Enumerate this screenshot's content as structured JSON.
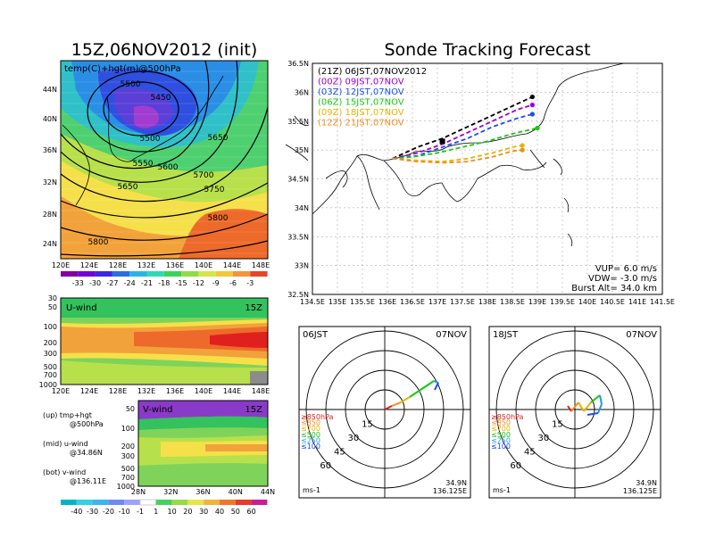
{
  "map_title": "15Z,06NOV2012 (init)",
  "map_subtitle": "temp(C)+hgt(m)@500hPa",
  "map_lat_labels": [
    "44N",
    "40N",
    "36N",
    "32N",
    "28N",
    "24N"
  ],
  "map_lon_labels": [
    "120E",
    "124E",
    "128E",
    "132E",
    "136E",
    "140E",
    "144E",
    "148E"
  ],
  "contour_labels": [
    "5500",
    "5450",
    "5500",
    "5550",
    "5600",
    "5650",
    "5650",
    "5700",
    "5750",
    "5800",
    "5800"
  ],
  "temp_colorbar": [
    "-33",
    "-30",
    "-27",
    "-24",
    "-21",
    "-18",
    "-15",
    "-12",
    "-9",
    "-6",
    "-3"
  ],
  "uwind": {
    "label": "U-wind",
    "time": "15Z",
    "p_labels": [
      "30",
      "50",
      "100",
      "200",
      "300",
      "500",
      "700",
      "1000"
    ]
  },
  "vwind": {
    "label": "V-wind",
    "time": "15Z",
    "p_labels": [
      "50",
      "100",
      "200",
      "300",
      "500",
      "700",
      "1000"
    ],
    "lat_labels": [
      "28N",
      "32N",
      "36N",
      "40N",
      "44N"
    ]
  },
  "legend_notes": [
    {
      "a": "(up) tmp+hgt",
      "b": "@500hPa"
    },
    {
      "a": "(mid) u-wind",
      "b": "@34.86N"
    },
    {
      "a": "(bot) v-wind",
      "b": "@136.11E"
    }
  ],
  "wind_colorbar": [
    "-40",
    "-30",
    "-20",
    "-10",
    "-1",
    "1",
    "10",
    "20",
    "30",
    "40",
    "50",
    "60"
  ],
  "colors": {
    "c00": "#000000",
    "c03": "#9a00d6",
    "c06": "#1e4fe6",
    "c09": "#19c810",
    "c12": "#e6b400",
    "c15": "#f08c1e",
    "c18": "#ff3c00"
  },
  "chart_data": {
    "type": "line",
    "title": "Sonde Tracking Forecast",
    "xlim": [
      134.5,
      141.5
    ],
    "ylim": [
      32.5,
      36.5
    ],
    "x_ticks": [
      "134.5E",
      "135E",
      "135.5E",
      "136E",
      "136.5E",
      "137E",
      "137.5E",
      "138E",
      "138.5E",
      "139E",
      "139.5E",
      "140E",
      "140.5E",
      "141E",
      "141.5E"
    ],
    "y_ticks": [
      "32.5N",
      "33N",
      "33.5N",
      "34N",
      "34.5N",
      "35N",
      "35.5N",
      "36N",
      "36.5N"
    ],
    "series": [
      {
        "name": "(21Z)  06JST,07NOV2012",
        "color": "#000000",
        "x": [
          136.1,
          136.6,
          137.1,
          137.6,
          138.1,
          138.6,
          138.9
        ],
        "y": [
          34.85,
          35.05,
          35.2,
          35.4,
          35.6,
          35.8,
          35.92
        ]
      },
      {
        "name": "(00Z)  09JST,07NOV",
        "color": "#9a00d6",
        "x": [
          136.1,
          136.6,
          137.1,
          137.6,
          138.1,
          138.6,
          138.9
        ],
        "y": [
          34.85,
          34.95,
          35.1,
          35.3,
          35.5,
          35.7,
          35.78
        ]
      },
      {
        "name": "(03Z)  12JST,07NOV",
        "color": "#1e4fe6",
        "x": [
          136.1,
          136.6,
          137.1,
          137.6,
          138.1,
          138.6,
          138.9
        ],
        "y": [
          34.85,
          34.9,
          35.05,
          35.2,
          35.4,
          35.55,
          35.62
        ]
      },
      {
        "name": "(06Z)  15JST,07NOV",
        "color": "#19c810",
        "x": [
          136.1,
          136.5,
          137.0,
          137.5,
          138.0,
          138.5,
          139.0
        ],
        "y": [
          34.85,
          34.88,
          34.95,
          35.05,
          35.15,
          35.28,
          35.38
        ]
      },
      {
        "name": "(09Z)  18JST,07NOV",
        "color": "#e6b400",
        "x": [
          136.1,
          136.6,
          137.1,
          137.6,
          138.1,
          138.5,
          138.7
        ],
        "y": [
          34.85,
          34.82,
          34.8,
          34.85,
          34.95,
          35.05,
          35.08
        ]
      },
      {
        "name": "(12Z)  21JST,07NOV",
        "color": "#f08c1e",
        "x": [
          136.1,
          136.6,
          137.1,
          137.6,
          138.1,
          138.5,
          138.7
        ],
        "y": [
          34.85,
          34.8,
          34.78,
          34.8,
          34.88,
          34.98,
          35.0
        ]
      }
    ],
    "annotations": [
      "VUP=  6.0  m/s",
      "VDW= -3.0  m/s",
      "Burst Alt=  34.0  km"
    ]
  },
  "hodographs": [
    {
      "time": "06JST",
      "date": "07NOV",
      "pos": "34.9N",
      "lon": "136.125E",
      "unit": "ms-1",
      "rings": [
        "15",
        "30",
        "45",
        "60"
      ],
      "levels": [
        "≥850hPa",
        "≤850",
        "≤700",
        "≤500",
        "≤250",
        "≤100"
      ]
    },
    {
      "time": "18JST",
      "date": "07NOV",
      "pos": "34.9N",
      "lon": "136.125E",
      "unit": "ms-1",
      "rings": [
        "15",
        "30",
        "45",
        "60"
      ],
      "levels": [
        "≥850hPa",
        "≤850",
        "≤700",
        "≤500",
        "≤250",
        "≤100"
      ]
    }
  ]
}
